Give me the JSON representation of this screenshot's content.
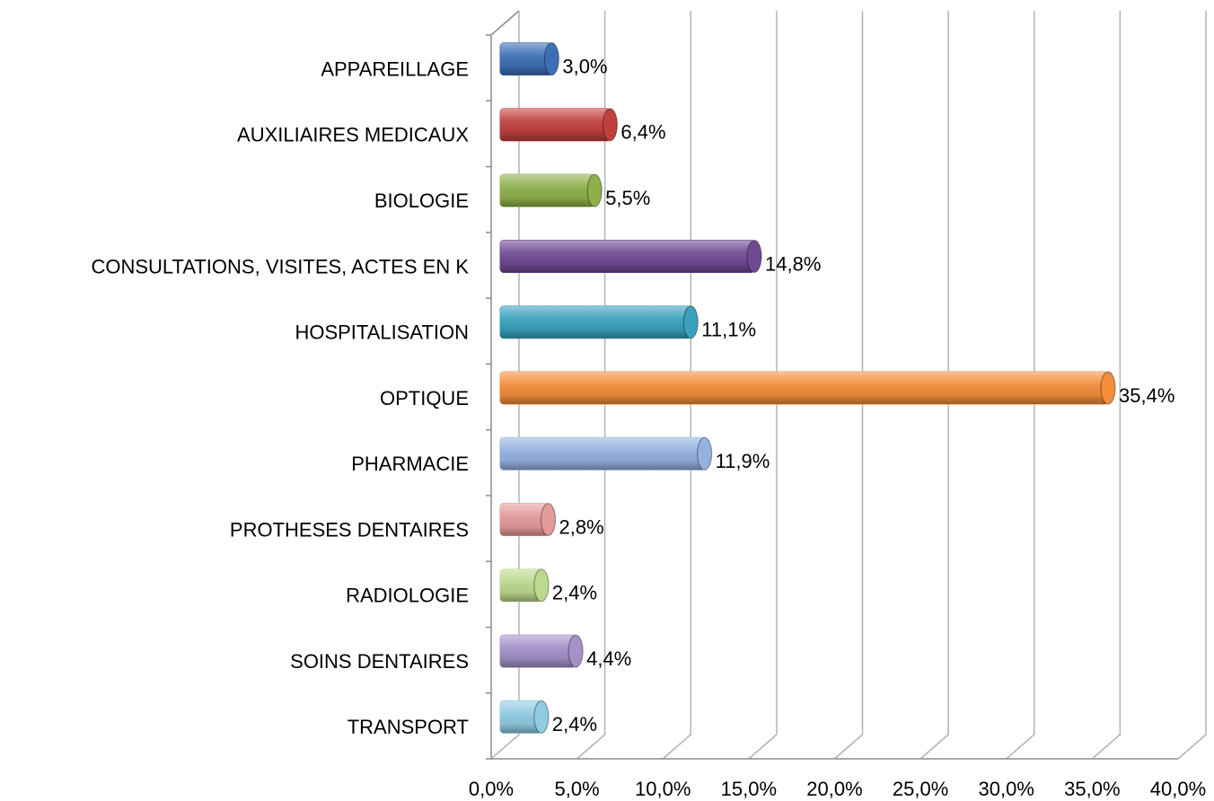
{
  "chart_data": {
    "type": "bar",
    "orientation": "horizontal",
    "categories": [
      "APPAREILLAGE",
      "AUXILIAIRES MEDICAUX",
      "BIOLOGIE",
      "CONSULTATIONS, VISITES, ACTES EN K",
      "HOSPITALISATION",
      "OPTIQUE",
      "PHARMACIE",
      "PROTHESES DENTAIRES",
      "RADIOLOGIE",
      "SOINS DENTAIRES",
      "TRANSPORT"
    ],
    "values": [
      3.0,
      6.4,
      5.5,
      14.8,
      11.1,
      35.4,
      11.9,
      2.8,
      2.4,
      4.4,
      2.4
    ],
    "value_labels": [
      "3,0%",
      "6,4%",
      "5,5%",
      "14,8%",
      "11,1%",
      "35,4%",
      "11,9%",
      "2,8%",
      "2,4%",
      "4,4%",
      "2,4%"
    ],
    "colors": [
      "#3d6fb5",
      "#c0403d",
      "#8db04a",
      "#6f4a93",
      "#3aa1bd",
      "#f38d3a",
      "#94b1e0",
      "#e39a9a",
      "#bcd88e",
      "#a391c8",
      "#8fcbe2"
    ],
    "xlim": [
      0,
      40
    ],
    "xticks": [
      {
        "value": 0,
        "label": "0,0%"
      },
      {
        "value": 5,
        "label": "5,0%"
      },
      {
        "value": 10,
        "label": "10,0%"
      },
      {
        "value": 15,
        "label": "15,0%"
      },
      {
        "value": 20,
        "label": "20,0%"
      },
      {
        "value": 25,
        "label": "25,0%"
      },
      {
        "value": 30,
        "label": "30,0%"
      },
      {
        "value": 35,
        "label": "35,0%"
      },
      {
        "value": 40,
        "label": "40,0%"
      }
    ],
    "grid": true
  }
}
